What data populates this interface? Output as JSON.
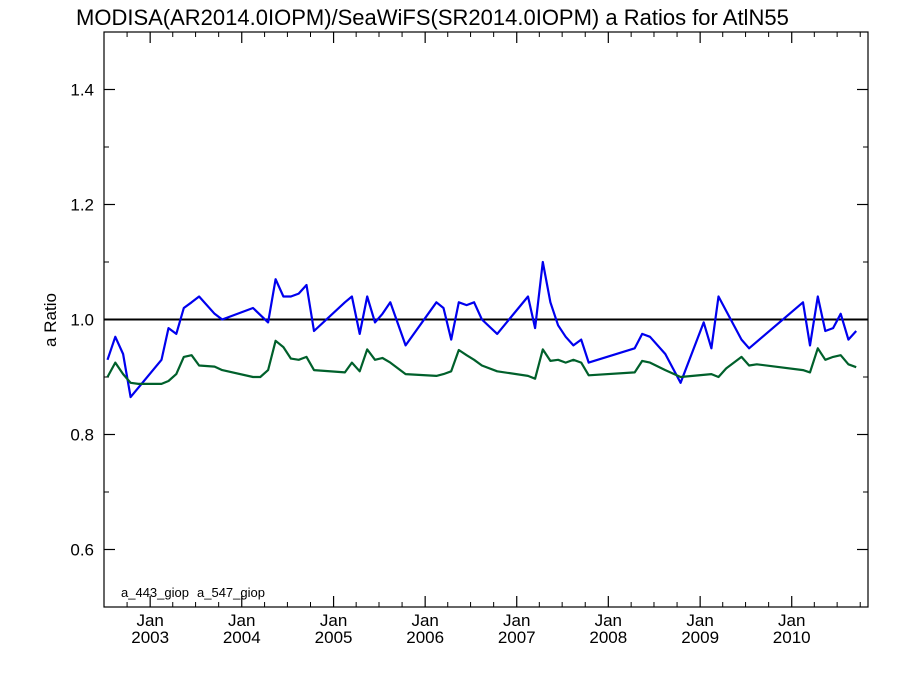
{
  "chart_data": {
    "type": "line",
    "title": "MODISA(AR2014.0IOPM)/SeaWiFS(SR2014.0IOPM)  a Ratios for AtlN55",
    "xlabel": "",
    "ylabel": "a Ratio",
    "xlim": [
      "2002-07-01",
      "2010-11-01"
    ],
    "ylim": [
      0.5,
      1.5
    ],
    "xticks": [
      {
        "date": "2003-01-01",
        "month": "Jan",
        "year": "2003"
      },
      {
        "date": "2004-01-01",
        "month": "Jan",
        "year": "2004"
      },
      {
        "date": "2005-01-01",
        "month": "Jan",
        "year": "2005"
      },
      {
        "date": "2006-01-01",
        "month": "Jan",
        "year": "2006"
      },
      {
        "date": "2007-01-01",
        "month": "Jan",
        "year": "2007"
      },
      {
        "date": "2008-01-01",
        "month": "Jan",
        "year": "2008"
      },
      {
        "date": "2009-01-01",
        "month": "Jan",
        "year": "2009"
      },
      {
        "date": "2010-01-01",
        "month": "Jan",
        "year": "2010"
      }
    ],
    "yticks": [
      "0.6",
      "0.8",
      "1.0",
      "1.2",
      "1.4"
    ],
    "reference_line": 1.0,
    "series": [
      {
        "name": "a_443_giop",
        "color": "#0000ee",
        "points": [
          [
            "2002-07-15",
            0.93
          ],
          [
            "2002-08-15",
            0.97
          ],
          [
            "2002-09-15",
            0.94
          ],
          [
            "2002-10-15",
            0.865
          ],
          [
            "2003-02-15",
            0.93
          ],
          [
            "2003-03-15",
            0.985
          ],
          [
            "2003-04-15",
            0.975
          ],
          [
            "2003-05-15",
            1.02
          ],
          [
            "2003-06-15",
            1.03
          ],
          [
            "2003-07-15",
            1.04
          ],
          [
            "2003-09-15",
            1.01
          ],
          [
            "2003-10-15",
            1.0
          ],
          [
            "2004-02-15",
            1.02
          ],
          [
            "2004-04-15",
            0.995
          ],
          [
            "2004-05-15",
            1.07
          ],
          [
            "2004-06-15",
            1.04
          ],
          [
            "2004-07-15",
            1.04
          ],
          [
            "2004-08-15",
            1.045
          ],
          [
            "2004-09-15",
            1.06
          ],
          [
            "2004-10-15",
            0.98
          ],
          [
            "2005-02-15",
            1.03
          ],
          [
            "2005-03-15",
            1.04
          ],
          [
            "2005-04-15",
            0.975
          ],
          [
            "2005-05-15",
            1.04
          ],
          [
            "2005-06-15",
            0.995
          ],
          [
            "2005-07-15",
            1.01
          ],
          [
            "2005-08-15",
            1.03
          ],
          [
            "2005-10-15",
            0.955
          ],
          [
            "2006-02-15",
            1.03
          ],
          [
            "2006-03-15",
            1.02
          ],
          [
            "2006-04-15",
            0.965
          ],
          [
            "2006-05-15",
            1.03
          ],
          [
            "2006-06-15",
            1.025
          ],
          [
            "2006-07-15",
            1.03
          ],
          [
            "2006-08-15",
            1.0
          ],
          [
            "2006-10-15",
            0.975
          ],
          [
            "2007-02-15",
            1.04
          ],
          [
            "2007-03-15",
            0.985
          ],
          [
            "2007-04-15",
            1.1
          ],
          [
            "2007-05-15",
            1.03
          ],
          [
            "2007-06-15",
            0.99
          ],
          [
            "2007-07-15",
            0.97
          ],
          [
            "2007-08-15",
            0.955
          ],
          [
            "2007-09-15",
            0.965
          ],
          [
            "2007-10-15",
            0.925
          ],
          [
            "2008-04-15",
            0.95
          ],
          [
            "2008-05-15",
            0.975
          ],
          [
            "2008-06-15",
            0.97
          ],
          [
            "2008-08-15",
            0.94
          ],
          [
            "2008-10-15",
            0.89
          ],
          [
            "2009-01-15",
            0.995
          ],
          [
            "2009-02-15",
            0.95
          ],
          [
            "2009-03-15",
            1.04
          ],
          [
            "2009-06-15",
            0.965
          ],
          [
            "2009-07-15",
            0.95
          ],
          [
            "2010-02-15",
            1.03
          ],
          [
            "2010-03-15",
            0.955
          ],
          [
            "2010-04-15",
            1.04
          ],
          [
            "2010-05-15",
            0.98
          ],
          [
            "2010-06-15",
            0.985
          ],
          [
            "2010-07-15",
            1.01
          ],
          [
            "2010-08-15",
            0.965
          ],
          [
            "2010-09-15",
            0.98
          ]
        ]
      },
      {
        "name": "a_547_giop",
        "color": "#00602b",
        "points": [
          [
            "2002-07-15",
            0.9
          ],
          [
            "2002-08-15",
            0.925
          ],
          [
            "2002-09-15",
            0.905
          ],
          [
            "2002-10-15",
            0.89
          ],
          [
            "2002-11-15",
            0.888
          ],
          [
            "2003-02-15",
            0.888
          ],
          [
            "2003-03-15",
            0.893
          ],
          [
            "2003-04-15",
            0.905
          ],
          [
            "2003-05-15",
            0.935
          ],
          [
            "2003-06-15",
            0.938
          ],
          [
            "2003-07-15",
            0.92
          ],
          [
            "2003-09-15",
            0.918
          ],
          [
            "2003-10-15",
            0.912
          ],
          [
            "2004-02-15",
            0.9
          ],
          [
            "2004-03-15",
            0.9
          ],
          [
            "2004-04-15",
            0.912
          ],
          [
            "2004-05-15",
            0.963
          ],
          [
            "2004-06-15",
            0.952
          ],
          [
            "2004-07-15",
            0.932
          ],
          [
            "2004-08-15",
            0.93
          ],
          [
            "2004-09-15",
            0.935
          ],
          [
            "2004-10-15",
            0.912
          ],
          [
            "2005-02-15",
            0.908
          ],
          [
            "2005-03-15",
            0.925
          ],
          [
            "2005-04-15",
            0.91
          ],
          [
            "2005-05-15",
            0.948
          ],
          [
            "2005-06-15",
            0.93
          ],
          [
            "2005-07-15",
            0.933
          ],
          [
            "2005-08-15",
            0.925
          ],
          [
            "2005-10-15",
            0.905
          ],
          [
            "2006-02-15",
            0.902
          ],
          [
            "2006-03-15",
            0.905
          ],
          [
            "2006-04-15",
            0.91
          ],
          [
            "2006-05-15",
            0.947
          ],
          [
            "2006-06-15",
            0.938
          ],
          [
            "2006-07-15",
            0.93
          ],
          [
            "2006-08-15",
            0.92
          ],
          [
            "2006-10-15",
            0.91
          ],
          [
            "2007-02-15",
            0.902
          ],
          [
            "2007-03-15",
            0.897
          ],
          [
            "2007-04-15",
            0.948
          ],
          [
            "2007-05-15",
            0.928
          ],
          [
            "2007-06-15",
            0.93
          ],
          [
            "2007-07-15",
            0.925
          ],
          [
            "2007-08-15",
            0.93
          ],
          [
            "2007-09-15",
            0.925
          ],
          [
            "2007-10-15",
            0.903
          ],
          [
            "2008-04-15",
            0.908
          ],
          [
            "2008-05-15",
            0.928
          ],
          [
            "2008-06-15",
            0.925
          ],
          [
            "2008-08-15",
            0.912
          ],
          [
            "2008-10-15",
            0.9
          ],
          [
            "2009-02-15",
            0.905
          ],
          [
            "2009-03-15",
            0.9
          ],
          [
            "2009-04-15",
            0.915
          ],
          [
            "2009-06-15",
            0.935
          ],
          [
            "2009-07-15",
            0.92
          ],
          [
            "2009-08-15",
            0.922
          ],
          [
            "2010-02-15",
            0.912
          ],
          [
            "2010-03-15",
            0.908
          ],
          [
            "2010-04-15",
            0.95
          ],
          [
            "2010-05-15",
            0.93
          ],
          [
            "2010-06-15",
            0.935
          ],
          [
            "2010-07-15",
            0.938
          ],
          [
            "2010-08-15",
            0.922
          ],
          [
            "2010-09-15",
            0.917
          ]
        ]
      }
    ],
    "legend": {
      "placement": "bottom-left",
      "entries": [
        "a_443_giop",
        "a_547_giop"
      ]
    },
    "grid": false
  }
}
